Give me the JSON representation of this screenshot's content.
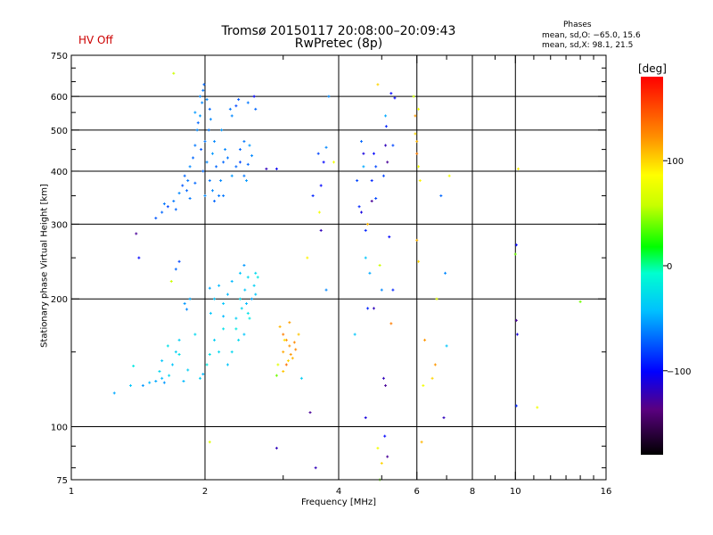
{
  "header": {
    "title_line1": "Tromsø 20150117 20:08:00–20:09:43",
    "title_line2": "RwPretec (8p)",
    "status": "HV Off",
    "status_color": "#cc0000",
    "phases_title": "Phases",
    "phases_o": "mean, sd,O: −65.0, 15.6",
    "phases_x": "mean, sd,X:  98.1, 21.5"
  },
  "colorbar": {
    "title": "[deg]",
    "tick_labels": [
      "100",
      "0",
      "−100"
    ],
    "tick_values": [
      100,
      0,
      -100
    ],
    "range": [
      -180,
      180
    ]
  },
  "chart_data": {
    "type": "scatter",
    "xlabel": "Frequency [MHz]",
    "ylabel": "Stationary phase Virtual Height [km]",
    "xscale": "log",
    "yscale": "log",
    "xlim": [
      1,
      16
    ],
    "ylim": [
      75,
      750
    ],
    "x_ticks": [
      1,
      2,
      4,
      6,
      8,
      10,
      16
    ],
    "x_tick_labels": [
      "1",
      "2",
      "4",
      "6",
      "8",
      "10",
      "16"
    ],
    "x_minor_ticks": [
      3,
      5,
      7,
      9,
      11,
      12,
      13,
      14,
      15
    ],
    "y_ticks": [
      75,
      100,
      200,
      300,
      400,
      500,
      600,
      750
    ],
    "y_tick_labels": [
      "75",
      "100",
      "200",
      "300",
      "400",
      "500",
      "600",
      "750"
    ],
    "y_minor_ticks": [
      80,
      90,
      150,
      250,
      350,
      450,
      550,
      650,
      700
    ],
    "vertical_gridlines": [
      2,
      4,
      6,
      8,
      10
    ],
    "horizontal_gridlines": [
      100,
      200,
      300,
      400,
      500,
      600
    ],
    "color_encoding": "phase [deg]",
    "points": [
      [
        1.25,
        120,
        -50
      ],
      [
        1.36,
        125,
        -40
      ],
      [
        1.38,
        139,
        -20
      ],
      [
        1.45,
        125,
        -55
      ],
      [
        1.5,
        127,
        -45
      ],
      [
        1.55,
        128,
        -50
      ],
      [
        1.6,
        130,
        -45
      ],
      [
        1.62,
        127,
        -55
      ],
      [
        1.66,
        132,
        -30
      ],
      [
        1.69,
        140,
        -40
      ],
      [
        1.72,
        150,
        -35
      ],
      [
        1.75,
        148,
        -25
      ],
      [
        1.6,
        143,
        -40
      ],
      [
        1.58,
        135,
        -30
      ],
      [
        1.65,
        155,
        -25
      ],
      [
        1.79,
        128,
        -45
      ],
      [
        1.83,
        136,
        -35
      ],
      [
        1.75,
        160,
        -35
      ],
      [
        1.9,
        165,
        -30
      ],
      [
        1.82,
        189,
        -60
      ],
      [
        1.85,
        200,
        -50
      ],
      [
        1.8,
        195,
        -55
      ],
      [
        1.72,
        235,
        -70
      ],
      [
        1.75,
        245,
        -80
      ],
      [
        1.68,
        220,
        60
      ],
      [
        1.95,
        130,
        -35
      ],
      [
        1.98,
        133,
        -45
      ],
      [
        2.02,
        140,
        -20
      ],
      [
        2.05,
        148,
        -25
      ],
      [
        2.1,
        160,
        -35
      ],
      [
        2.06,
        185,
        -40
      ],
      [
        2.15,
        150,
        -30
      ],
      [
        2.2,
        170,
        -25
      ],
      [
        2.1,
        200,
        -40
      ],
      [
        2.15,
        215,
        -45
      ],
      [
        2.2,
        195,
        -40
      ],
      [
        2.05,
        212,
        -50
      ],
      [
        2.25,
        205,
        -45
      ],
      [
        2.35,
        180,
        -35
      ],
      [
        2.38,
        160,
        -30
      ],
      [
        2.45,
        165,
        -40
      ],
      [
        2.42,
        190,
        -30
      ],
      [
        2.46,
        210,
        -40
      ],
      [
        2.5,
        225,
        -30
      ],
      [
        2.48,
        195,
        -45
      ],
      [
        2.52,
        180,
        -20
      ],
      [
        2.55,
        200,
        -50
      ],
      [
        2.58,
        215,
        -35
      ],
      [
        2.4,
        230,
        -40
      ],
      [
        2.45,
        240,
        -55
      ],
      [
        2.6,
        230,
        -30
      ],
      [
        2.3,
        150,
        -30
      ],
      [
        2.25,
        140,
        -40
      ],
      [
        2.35,
        170,
        -20
      ],
      [
        2.4,
        200,
        -30
      ],
      [
        2.5,
        185,
        -25
      ],
      [
        2.6,
        205,
        -40
      ],
      [
        2.3,
        220,
        -45
      ],
      [
        2.63,
        225,
        -20
      ],
      [
        2.2,
        182,
        -45
      ],
      [
        3.0,
        165,
        130
      ],
      [
        2.95,
        172,
        110
      ],
      [
        3.05,
        160,
        125
      ],
      [
        3.1,
        155,
        120
      ],
      [
        3.0,
        150,
        115
      ],
      [
        3.12,
        148,
        120
      ],
      [
        3.05,
        140,
        135
      ],
      [
        3.15,
        145,
        110
      ],
      [
        3.2,
        152,
        125
      ],
      [
        3.08,
        143,
        100
      ],
      [
        3.0,
        135,
        105
      ],
      [
        2.92,
        140,
        70
      ],
      [
        2.9,
        132,
        40
      ],
      [
        3.02,
        160,
        95
      ],
      [
        3.25,
        165,
        105
      ],
      [
        3.18,
        158,
        125
      ],
      [
        3.1,
        176,
        118
      ],
      [
        1.55,
        310,
        -75
      ],
      [
        1.6,
        320,
        -70
      ],
      [
        1.62,
        335,
        -65
      ],
      [
        1.65,
        330,
        -80
      ],
      [
        1.7,
        340,
        -65
      ],
      [
        1.72,
        325,
        -70
      ],
      [
        1.75,
        355,
        -60
      ],
      [
        1.78,
        370,
        -75
      ],
      [
        1.8,
        390,
        -70
      ],
      [
        1.83,
        380,
        -65
      ],
      [
        1.85,
        410,
        -60
      ],
      [
        1.88,
        430,
        -70
      ],
      [
        1.9,
        460,
        -65
      ],
      [
        1.92,
        500,
        -60
      ],
      [
        1.95,
        540,
        -55
      ],
      [
        1.97,
        580,
        -60
      ],
      [
        1.98,
        620,
        -65
      ],
      [
        1.99,
        640,
        -70
      ],
      [
        1.95,
        600,
        -60
      ],
      [
        1.9,
        550,
        -55
      ],
      [
        1.93,
        520,
        -70
      ],
      [
        1.96,
        450,
        -75
      ],
      [
        2.0,
        470,
        -65
      ],
      [
        1.98,
        400,
        -70
      ],
      [
        2.02,
        420,
        -60
      ],
      [
        2.04,
        500,
        -65
      ],
      [
        2.05,
        560,
        -70
      ],
      [
        2.06,
        530,
        -60
      ],
      [
        2.08,
        440,
        -55
      ],
      [
        2.1,
        470,
        -60
      ],
      [
        2.12,
        410,
        -70
      ],
      [
        2.05,
        380,
        -65
      ],
      [
        2.08,
        360,
        -60
      ],
      [
        2.1,
        340,
        -70
      ],
      [
        2.15,
        350,
        -65
      ],
      [
        2.17,
        380,
        -60
      ],
      [
        2.2,
        420,
        -70
      ],
      [
        2.22,
        450,
        -60
      ],
      [
        2.18,
        500,
        -55
      ],
      [
        2.25,
        430,
        -65
      ],
      [
        2.3,
        390,
        -55
      ],
      [
        2.35,
        410,
        -70
      ],
      [
        2.4,
        420,
        -80
      ],
      [
        2.45,
        390,
        -65
      ],
      [
        2.5,
        415,
        -70
      ],
      [
        2.55,
        435,
        -60
      ],
      [
        2.48,
        380,
        -55
      ],
      [
        2.4,
        450,
        -70
      ],
      [
        2.45,
        470,
        -65
      ],
      [
        2.52,
        460,
        -55
      ],
      [
        2.3,
        540,
        -60
      ],
      [
        2.35,
        570,
        -80
      ],
      [
        2.38,
        590,
        -75
      ],
      [
        2.5,
        580,
        -65
      ],
      [
        2.6,
        560,
        -70
      ],
      [
        2.58,
        600,
        -100
      ],
      [
        2.2,
        350,
        -65
      ],
      [
        2.0,
        350,
        -60
      ],
      [
        1.85,
        345,
        -65
      ],
      [
        1.9,
        375,
        -70
      ],
      [
        1.82,
        360,
        -70
      ],
      [
        2.02,
        590,
        -60
      ],
      [
        2.28,
        560,
        -65
      ],
      [
        1.4,
        285,
        -130
      ],
      [
        1.42,
        250,
        -100
      ],
      [
        1.7,
        680,
        60
      ],
      [
        2.05,
        92,
        70
      ],
      [
        2.9,
        89,
        -120
      ],
      [
        2.75,
        405,
        -120
      ],
      [
        2.9,
        405,
        -105
      ],
      [
        3.3,
        130,
        -35
      ],
      [
        3.4,
        250,
        90
      ],
      [
        3.45,
        108,
        -130
      ],
      [
        3.5,
        350,
        -90
      ],
      [
        3.55,
        80,
        -120
      ],
      [
        3.65,
        290,
        -120
      ],
      [
        3.7,
        420,
        -100
      ],
      [
        3.75,
        455,
        -60
      ],
      [
        3.65,
        370,
        -100
      ],
      [
        3.6,
        440,
        -80
      ],
      [
        3.75,
        210,
        -60
      ],
      [
        3.9,
        420,
        80
      ],
      [
        3.62,
        320,
        80
      ],
      [
        4.35,
        165,
        -40
      ],
      [
        4.4,
        380,
        -80
      ],
      [
        4.45,
        330,
        -90
      ],
      [
        4.5,
        320,
        -110
      ],
      [
        4.55,
        410,
        -50
      ],
      [
        4.5,
        470,
        -70
      ],
      [
        4.55,
        440,
        -110
      ],
      [
        4.6,
        250,
        -40
      ],
      [
        4.65,
        300,
        110
      ],
      [
        4.6,
        290,
        -90
      ],
      [
        4.7,
        230,
        -50
      ],
      [
        4.75,
        340,
        -130
      ],
      [
        4.65,
        190,
        -90
      ],
      [
        4.8,
        190,
        -120
      ],
      [
        4.85,
        410,
        -80
      ],
      [
        4.8,
        440,
        -100
      ],
      [
        4.75,
        380,
        -90
      ],
      [
        4.85,
        345,
        -80
      ],
      [
        4.9,
        640,
        100
      ],
      [
        4.9,
        89,
        80
      ],
      [
        4.95,
        75,
        40
      ],
      [
        5.0,
        82,
        100
      ],
      [
        4.95,
        240,
        60
      ],
      [
        5.0,
        210,
        -60
      ],
      [
        5.05,
        390,
        -80
      ],
      [
        5.1,
        540,
        -50
      ],
      [
        5.12,
        510,
        -90
      ],
      [
        5.1,
        460,
        -120
      ],
      [
        5.15,
        420,
        -130
      ],
      [
        5.08,
        95,
        -100
      ],
      [
        5.15,
        85,
        -130
      ],
      [
        5.05,
        130,
        -120
      ],
      [
        5.1,
        125,
        -130
      ],
      [
        5.2,
        280,
        -100
      ],
      [
        5.25,
        175,
        130
      ],
      [
        5.3,
        210,
        -90
      ],
      [
        5.35,
        595,
        -100
      ],
      [
        5.3,
        460,
        -80
      ],
      [
        5.25,
        610,
        -100
      ],
      [
        5.9,
        600,
        60
      ],
      [
        5.95,
        540,
        120
      ],
      [
        5.95,
        490,
        100
      ],
      [
        6.0,
        470,
        110
      ],
      [
        6.0,
        440,
        130
      ],
      [
        6.05,
        410,
        80
      ],
      [
        6.1,
        380,
        90
      ],
      [
        6.05,
        560,
        80
      ],
      [
        6.0,
        275,
        110
      ],
      [
        6.05,
        245,
        100
      ],
      [
        6.2,
        125,
        80
      ],
      [
        6.25,
        160,
        120
      ],
      [
        6.15,
        92,
        110
      ],
      [
        6.5,
        130,
        100
      ],
      [
        6.6,
        140,
        120
      ],
      [
        6.65,
        200,
        70
      ],
      [
        6.8,
        350,
        -70
      ],
      [
        6.9,
        105,
        -120
      ],
      [
        6.95,
        230,
        -60
      ],
      [
        7.0,
        155,
        -40
      ],
      [
        7.1,
        390,
        80
      ],
      [
        10.0,
        255,
        40
      ],
      [
        10.05,
        268,
        -100
      ],
      [
        10.05,
        178,
        -130
      ],
      [
        10.1,
        165,
        -110
      ],
      [
        10.05,
        112,
        -90
      ],
      [
        10.15,
        405,
        90
      ],
      [
        11.2,
        111,
        80
      ],
      [
        14.0,
        197,
        40
      ],
      [
        4.6,
        105,
        -110
      ],
      [
        3.8,
        600,
        -60
      ]
    ]
  }
}
